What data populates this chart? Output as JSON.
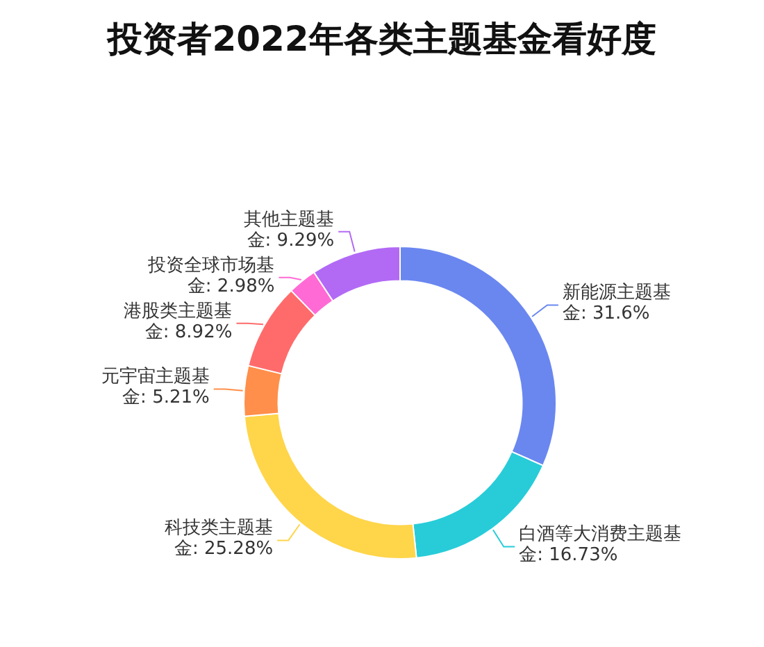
{
  "chart_data": {
    "type": "donut",
    "title": "投资者2022年各类主题基金看好度",
    "categories": [
      "新能源主题基金",
      "白酒等大消费主题基金",
      "科技类主题基金",
      "元宇宙主题基金",
      "港股类主题基金",
      "投资全球市场基金",
      "其他主题基金"
    ],
    "values": [
      31.6,
      16.73,
      25.28,
      5.21,
      8.92,
      2.98,
      9.29
    ],
    "value_labels": [
      "31.6%",
      "16.73%",
      "25.28%",
      "5.21%",
      "8.92%",
      "2.98%",
      "9.29%"
    ],
    "colors": [
      "#6a87f0",
      "#27ccd8",
      "#ffd54a",
      "#ff8f4a",
      "#ff6b6b",
      "#ff6ad5",
      "#b26af5"
    ],
    "legend": false
  }
}
